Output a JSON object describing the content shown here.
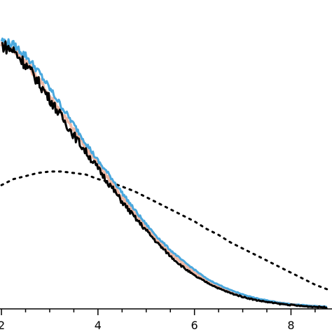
{
  "chart_data": {
    "type": "line",
    "title": "",
    "xlabel": "",
    "ylabel": "",
    "xlim": [
      1.97,
      8.85
    ],
    "ylim": [
      0,
      1.0
    ],
    "grid": false,
    "legend": "none",
    "x_ticks": [
      {
        "value": 2,
        "label": "2"
      },
      {
        "value": 4,
        "label": "4"
      },
      {
        "value": 6,
        "label": "6"
      },
      {
        "value": 8,
        "label": "8"
      }
    ],
    "x_minor_ticks": [
      2.5,
      3,
      3.5,
      4.5,
      5,
      5.5,
      6.5,
      7,
      7.5,
      8.5
    ],
    "x": [
      2.0,
      2.25,
      2.5,
      2.75,
      3.0,
      3.25,
      3.5,
      3.75,
      4.0,
      4.25,
      4.5,
      4.75,
      5.0,
      5.25,
      5.5,
      5.75,
      6.0,
      6.25,
      6.5,
      6.75,
      7.0,
      7.25,
      7.5,
      7.75,
      8.0,
      8.25,
      8.5,
      8.75
    ],
    "series": [
      {
        "style": "dotted",
        "color": "#000000",
        "values": [
          0.41,
          0.43,
          0.44,
          0.45,
          0.455,
          0.455,
          0.45,
          0.445,
          0.43,
          0.42,
          0.405,
          0.39,
          0.37,
          0.35,
          0.33,
          0.31,
          0.29,
          0.265,
          0.245,
          0.22,
          0.2,
          0.18,
          0.16,
          0.14,
          0.12,
          0.1,
          0.08,
          0.065
        ]
      },
      {
        "style": "solid",
        "color": "#f0b9a6",
        "values": [
          0.88,
          0.86,
          0.82,
          0.765,
          0.705,
          0.65,
          0.59,
          0.535,
          0.48,
          0.425,
          0.37,
          0.32,
          0.27,
          0.225,
          0.185,
          0.15,
          0.12,
          0.095,
          0.075,
          0.058,
          0.045,
          0.034,
          0.026,
          0.02,
          0.015,
          0.011,
          0.008,
          0.006
        ]
      },
      {
        "style": "solid",
        "color": "#4aa8de",
        "values": [
          0.89,
          0.875,
          0.84,
          0.79,
          0.73,
          0.67,
          0.61,
          0.55,
          0.49,
          0.44,
          0.385,
          0.33,
          0.28,
          0.235,
          0.195,
          0.16,
          0.13,
          0.1,
          0.08,
          0.062,
          0.048,
          0.036,
          0.028,
          0.021,
          0.016,
          0.012,
          0.009,
          0.007
        ]
      },
      {
        "style": "solid",
        "color": "#000000",
        "values": [
          0.875,
          0.855,
          0.81,
          0.755,
          0.695,
          0.635,
          0.575,
          0.52,
          0.465,
          0.41,
          0.355,
          0.305,
          0.26,
          0.215,
          0.175,
          0.14,
          0.11,
          0.088,
          0.068,
          0.052,
          0.04,
          0.03,
          0.023,
          0.017,
          0.013,
          0.009,
          0.007,
          0.005
        ]
      }
    ]
  }
}
